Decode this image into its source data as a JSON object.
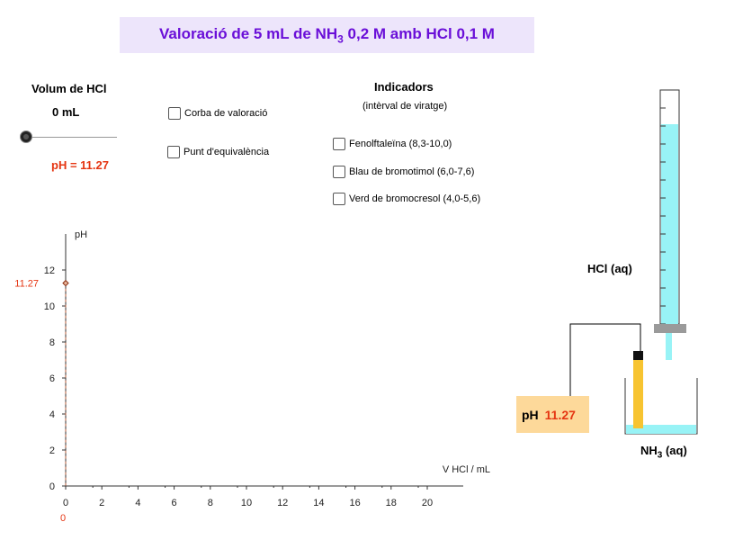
{
  "title": {
    "prefix": "Valoració de 5 mL de NH",
    "sub": "3",
    "suffix": " 0,2 M amb HCl 0,1 M"
  },
  "volume": {
    "label": "Volum de HCl",
    "value": "0 mL",
    "fraction": 0
  },
  "ph_readout": "pH = 11.27",
  "checkboxes": {
    "curve": "Corba de valoració",
    "equivalence": "Punt d'equivalència"
  },
  "indicators": {
    "title": "Indicadors",
    "subtitle": "(intèrval de viratge)",
    "items": [
      "Fenolftaleïna (8,3-10,0)",
      "Blau de bromotimol (6,0-7,6)",
      "Verd de bromocresol (4,0-5,6)"
    ]
  },
  "colors": {
    "title": "#6a0fd8",
    "title_bg": "#ede5fb",
    "accent_red": "#e53512",
    "solution": "#98f3f6",
    "probe": "#f7c431",
    "ph_box": "#fdd99a"
  },
  "chart_data": {
    "type": "scatter",
    "ylabel": "pH",
    "xlabel": "V HCl / mL",
    "xlim": [
      0,
      22
    ],
    "ylim": [
      0,
      14
    ],
    "x_ticks": [
      0,
      2,
      4,
      6,
      8,
      10,
      12,
      14,
      16,
      18,
      20
    ],
    "y_ticks": [
      0,
      2,
      4,
      6,
      8,
      10,
      12
    ],
    "points": [
      {
        "x": 0,
        "y": 11.27
      }
    ],
    "current_y_label": "11.27",
    "current_x_label": "0"
  },
  "apparatus": {
    "burette_label": "HCl (aq)",
    "beaker_label_prefix": "NH",
    "beaker_label_sub": "3",
    "beaker_label_suffix": " (aq)",
    "meter_label": "pH",
    "meter_value": "11.27"
  }
}
